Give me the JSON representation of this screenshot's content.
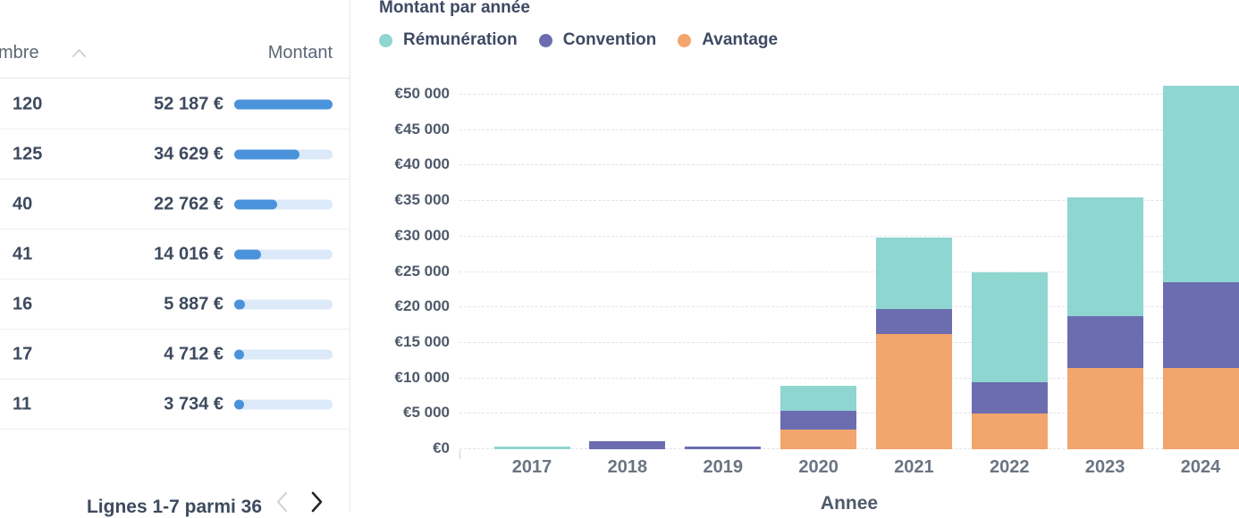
{
  "table": {
    "columns": {
      "nombre": "mbre",
      "montant": "Montant"
    },
    "sort": {
      "column": "nombre",
      "direction": "asc"
    },
    "bar_color": "#4a93db",
    "bar_track_color": "#dbe9f8",
    "rows": [
      {
        "nombre": "120",
        "montant": "52 187 €",
        "montant_value": 52187
      },
      {
        "nombre": "125",
        "montant": "34 629 €",
        "montant_value": 34629
      },
      {
        "nombre": "40",
        "montant": "22 762 €",
        "montant_value": 22762
      },
      {
        "nombre": "41",
        "montant": "14 016 €",
        "montant_value": 14016
      },
      {
        "nombre": "16",
        "montant": "5 887 €",
        "montant_value": 5887
      },
      {
        "nombre": "17",
        "montant": "4 712 €",
        "montant_value": 4712
      },
      {
        "nombre": "11",
        "montant": "3 734 €",
        "montant_value": 3734
      }
    ],
    "max_montant_value": 52187,
    "pagination": {
      "label": "Lignes 1-7 parmi 36",
      "prev_enabled": false,
      "next_enabled": true
    }
  },
  "chart_data": {
    "type": "bar",
    "stacked": true,
    "title": "Montant par année",
    "xlabel": "Annee",
    "ylabel": "",
    "categories": [
      "2017",
      "2018",
      "2019",
      "2020",
      "2021",
      "2022",
      "2023",
      "2024"
    ],
    "series": [
      {
        "name": "Rémunération",
        "color": "#8fd5d0",
        "values": [
          400,
          0,
          0,
          3500,
          10100,
          15500,
          16700,
          27800
        ]
      },
      {
        "name": "Convention",
        "color": "#6c6db0",
        "values": [
          0,
          1100,
          400,
          2600,
          3600,
          4500,
          7300,
          12000
        ]
      },
      {
        "name": "Avantage",
        "color": "#f2a56c",
        "values": [
          0,
          0,
          0,
          2800,
          16200,
          5000,
          11500,
          11500
        ]
      }
    ],
    "stack_order_bottom_to_top": [
      "Avantage",
      "Convention",
      "Rémunération"
    ],
    "ylim": [
      0,
      50000
    ],
    "ytick_step": 5000,
    "ytick_prefix": "€",
    "legend_position": "top",
    "grid": "horizontal-dashed"
  }
}
